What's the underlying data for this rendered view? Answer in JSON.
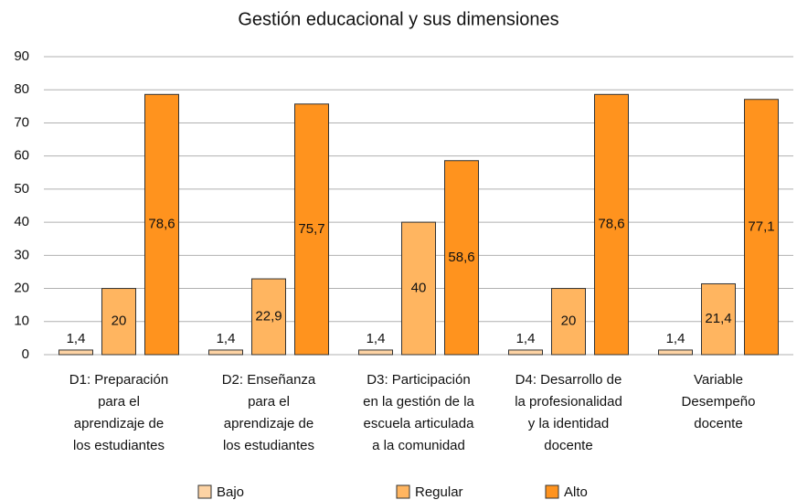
{
  "chart_data": {
    "type": "bar",
    "title": "Gestión educacional y sus dimensiones",
    "categories": [
      "D1: Preparación\npara el\naprendizaje de\nlos estudiantes",
      "D2: Enseñanza\npara el\naprendizaje de\nlos estudiantes",
      "D3: Participación\nen la gestión de la\nescuela articulada\na la comunidad",
      "D4: Desarrollo de\nla profesionalidad\ny la identidad\ndocente",
      "Variable\nDesempeño\ndocente"
    ],
    "series": [
      {
        "name": "Bajo",
        "color": "#fdd3a4",
        "values": [
          1.4,
          1.4,
          1.4,
          1.4,
          1.4
        ],
        "value_labels": [
          "1,4",
          "1,4",
          "1,4",
          "1,4",
          "1,4"
        ]
      },
      {
        "name": "Regular",
        "color": "#ffb560",
        "values": [
          20,
          22.9,
          40,
          20,
          21.4
        ],
        "value_labels": [
          "20",
          "22,9",
          "40",
          "20",
          "21,4"
        ]
      },
      {
        "name": "Alto",
        "color": "#ff931e",
        "values": [
          78.6,
          75.7,
          58.6,
          78.6,
          77.1
        ],
        "value_labels": [
          "78,6",
          "75,7",
          "58,6",
          "78,6",
          "77,1"
        ]
      }
    ],
    "ylim": [
      0,
      90
    ],
    "yticks": [
      0,
      10,
      20,
      30,
      40,
      50,
      60,
      70,
      80,
      90
    ],
    "grid": true,
    "legend": "bottom"
  }
}
